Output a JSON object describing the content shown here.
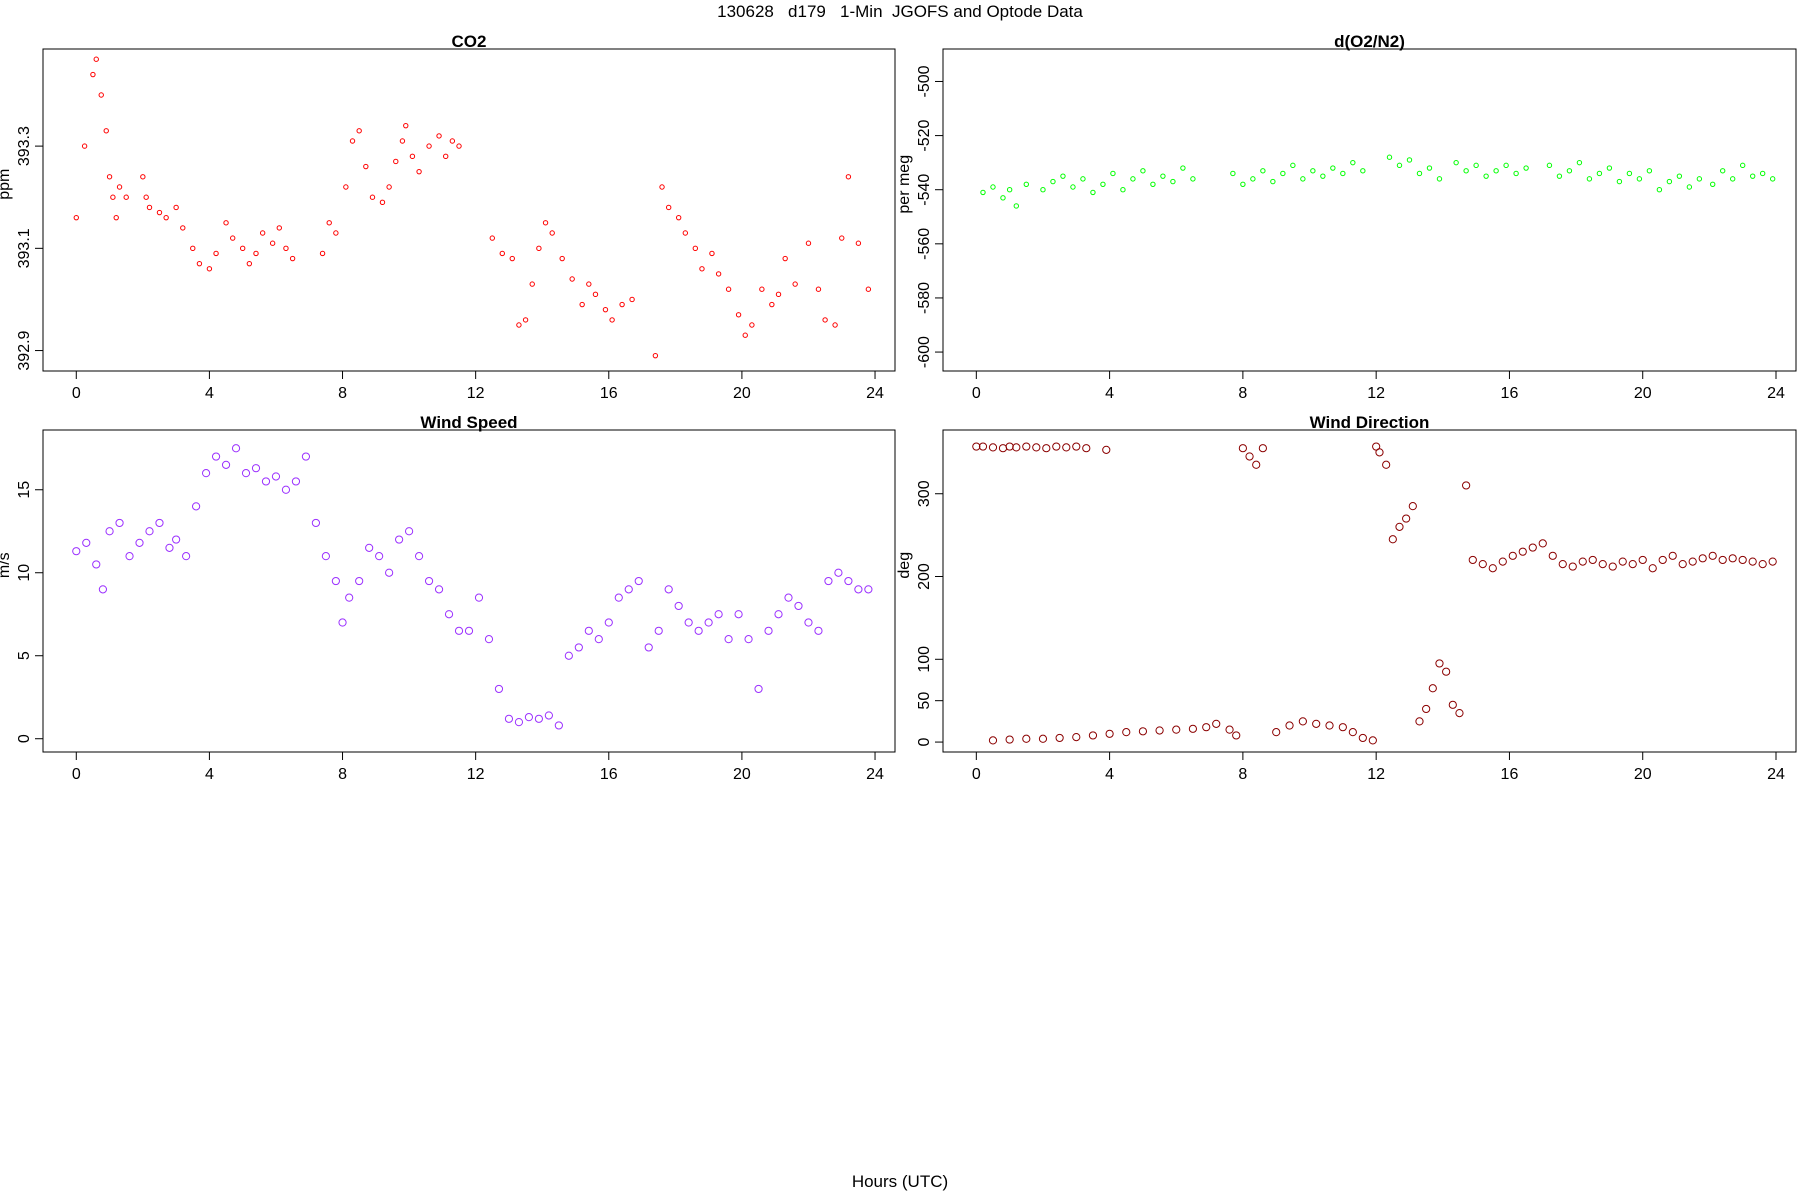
{
  "figure": {
    "title": "130628   d179   1-Min  JGOFS and Optode Data",
    "xlabel": "Hours (UTC)"
  },
  "chart_data": [
    {
      "type": "scatter",
      "title": "CO2",
      "ylabel": "ppm",
      "color": "#ff0000",
      "marker": "small-circle",
      "xlim": [
        -1,
        24.6
      ],
      "ylim": [
        392.86,
        393.49
      ],
      "xticks": [
        0,
        4,
        8,
        12,
        16,
        20,
        24
      ],
      "yticks": [
        392.9,
        393.1,
        393.3
      ],
      "ytick_labels": [
        "392.9",
        "393.1",
        "393.3"
      ],
      "grid": false,
      "series": [
        {
          "x": [
            0.0,
            0.25,
            0.5,
            0.6,
            0.75,
            0.9,
            1.0,
            1.1,
            1.2,
            1.3,
            1.5,
            2.0,
            2.1,
            2.2,
            2.5,
            2.7,
            3.0,
            3.2,
            3.5,
            3.7,
            4.0,
            4.2,
            4.5,
            4.7,
            5.0,
            5.2,
            5.4,
            5.6,
            5.9,
            6.1,
            6.3,
            6.5,
            7.4,
            7.6,
            7.8,
            8.1,
            8.3,
            8.5,
            8.7,
            8.9,
            9.2,
            9.4,
            9.6,
            9.8,
            9.9,
            10.1,
            10.3,
            10.6,
            10.9,
            11.1,
            11.3,
            11.5,
            12.5,
            12.8,
            13.1,
            13.3,
            13.5,
            13.7,
            13.9,
            14.1,
            14.3,
            14.6,
            14.9,
            15.2,
            15.4,
            15.6,
            15.9,
            16.1,
            16.4,
            16.7,
            17.4,
            17.6,
            17.8,
            18.1,
            18.3,
            18.6,
            18.8,
            19.1,
            19.3,
            19.6,
            19.9,
            20.1,
            20.3,
            20.6,
            20.9,
            21.1,
            21.3,
            21.6,
            22.0,
            22.3,
            22.5,
            22.8,
            23.0,
            23.2,
            23.5,
            23.8
          ],
          "y": [
            393.16,
            393.3,
            393.44,
            393.47,
            393.4,
            393.33,
            393.24,
            393.2,
            393.16,
            393.22,
            393.2,
            393.24,
            393.2,
            393.18,
            393.17,
            393.16,
            393.18,
            393.14,
            393.1,
            393.07,
            393.06,
            393.09,
            393.15,
            393.12,
            393.1,
            393.07,
            393.09,
            393.13,
            393.11,
            393.14,
            393.1,
            393.08,
            393.09,
            393.15,
            393.13,
            393.22,
            393.31,
            393.33,
            393.26,
            393.2,
            393.19,
            393.22,
            393.27,
            393.31,
            393.34,
            393.28,
            393.25,
            393.3,
            393.32,
            393.28,
            393.31,
            393.3,
            393.12,
            393.09,
            393.08,
            392.95,
            392.96,
            393.03,
            393.1,
            393.15,
            393.13,
            393.08,
            393.04,
            392.99,
            393.03,
            393.01,
            392.98,
            392.96,
            392.99,
            393.0,
            392.89,
            393.22,
            393.18,
            393.16,
            393.13,
            393.1,
            393.06,
            393.09,
            393.05,
            393.02,
            392.97,
            392.93,
            392.95,
            393.02,
            392.99,
            393.01,
            393.08,
            393.03,
            393.11,
            393.02,
            392.96,
            392.95,
            393.12,
            393.24,
            393.11,
            393.02
          ]
        }
      ]
    },
    {
      "type": "scatter",
      "title": "d(O2/N2)",
      "ylabel": "per meg",
      "color": "#00ff00",
      "marker": "small-circle",
      "xlim": [
        -1,
        24.6
      ],
      "ylim": [
        -607,
        -488
      ],
      "xticks": [
        0,
        4,
        8,
        12,
        16,
        20,
        24
      ],
      "yticks": [
        -600,
        -580,
        -560,
        -540,
        -520,
        -500
      ],
      "ytick_labels": [
        "-600",
        "-580",
        "-560",
        "-540",
        "-520",
        "-500"
      ],
      "grid": false,
      "series": [
        {
          "x": [
            0.2,
            0.5,
            0.8,
            1.0,
            1.2,
            1.5,
            2.0,
            2.3,
            2.6,
            2.9,
            3.2,
            3.5,
            3.8,
            4.1,
            4.4,
            4.7,
            5.0,
            5.3,
            5.6,
            5.9,
            6.2,
            6.5,
            7.7,
            8.0,
            8.3,
            8.6,
            8.9,
            9.2,
            9.5,
            9.8,
            10.1,
            10.4,
            10.7,
            11.0,
            11.3,
            11.6,
            12.4,
            12.7,
            13.0,
            13.3,
            13.6,
            13.9,
            14.4,
            14.7,
            15.0,
            15.3,
            15.6,
            15.9,
            16.2,
            16.5,
            17.2,
            17.5,
            17.8,
            18.1,
            18.4,
            18.7,
            19.0,
            19.3,
            19.6,
            19.9,
            20.2,
            20.5,
            20.8,
            21.1,
            21.4,
            21.7,
            22.1,
            22.4,
            22.7,
            23.0,
            23.3,
            23.6,
            23.9
          ],
          "y": [
            -541,
            -539,
            -543,
            -540,
            -546,
            -538,
            -540,
            -537,
            -535,
            -539,
            -536,
            -541,
            -538,
            -534,
            -540,
            -536,
            -533,
            -538,
            -535,
            -537,
            -532,
            -536,
            -534,
            -538,
            -536,
            -533,
            -537,
            -534,
            -531,
            -536,
            -533,
            -535,
            -532,
            -534,
            -530,
            -533,
            -528,
            -531,
            -529,
            -534,
            -532,
            -536,
            -530,
            -533,
            -531,
            -535,
            -533,
            -531,
            -534,
            -532,
            -531,
            -535,
            -533,
            -530,
            -536,
            -534,
            -532,
            -537,
            -534,
            -536,
            -533,
            -540,
            -537,
            -535,
            -539,
            -536,
            -538,
            -533,
            -536,
            -531,
            -535,
            -534,
            -536
          ]
        }
      ]
    },
    {
      "type": "scatter",
      "title": "Wind Speed",
      "ylabel": "m/s",
      "color": "#9b30ff",
      "marker": "circle",
      "xlim": [
        -1,
        24.6
      ],
      "ylim": [
        -0.8,
        18.6
      ],
      "xticks": [
        0,
        4,
        8,
        12,
        16,
        20,
        24
      ],
      "yticks": [
        0,
        5,
        10,
        15
      ],
      "ytick_labels": [
        "0",
        "5",
        "10",
        "15"
      ],
      "grid": false,
      "series": [
        {
          "x": [
            0.0,
            0.3,
            0.6,
            0.8,
            1.0,
            1.3,
            1.6,
            1.9,
            2.2,
            2.5,
            2.8,
            3.0,
            3.3,
            3.6,
            3.9,
            4.2,
            4.5,
            4.8,
            5.1,
            5.4,
            5.7,
            6.0,
            6.3,
            6.6,
            6.9,
            7.2,
            7.5,
            7.8,
            8.0,
            8.2,
            8.5,
            8.8,
            9.1,
            9.4,
            9.7,
            10.0,
            10.3,
            10.6,
            10.9,
            11.2,
            11.5,
            11.8,
            12.1,
            12.4,
            12.7,
            13.0,
            13.3,
            13.6,
            13.9,
            14.2,
            14.5,
            14.8,
            15.1,
            15.4,
            15.7,
            16.0,
            16.3,
            16.6,
            16.9,
            17.2,
            17.5,
            17.8,
            18.1,
            18.4,
            18.7,
            19.0,
            19.3,
            19.6,
            19.9,
            20.2,
            20.5,
            20.8,
            21.1,
            21.4,
            21.7,
            22.0,
            22.3,
            22.6,
            22.9,
            23.2,
            23.5,
            23.8
          ],
          "y": [
            11.3,
            11.8,
            10.5,
            9.0,
            12.5,
            13.0,
            11.0,
            11.8,
            12.5,
            13.0,
            11.5,
            12.0,
            11.0,
            14.0,
            16.0,
            17.0,
            16.5,
            17.5,
            16.0,
            16.3,
            15.5,
            15.8,
            15.0,
            15.5,
            17.0,
            13.0,
            11.0,
            9.5,
            7.0,
            8.5,
            9.5,
            11.5,
            11.0,
            10.0,
            12.0,
            12.5,
            11.0,
            9.5,
            9.0,
            7.5,
            6.5,
            6.5,
            8.5,
            6.0,
            3.0,
            1.2,
            1.0,
            1.3,
            1.2,
            1.4,
            0.8,
            5.0,
            5.5,
            6.5,
            6.0,
            7.0,
            8.5,
            9.0,
            9.5,
            5.5,
            6.5,
            9.0,
            8.0,
            7.0,
            6.5,
            7.0,
            7.5,
            6.0,
            7.5,
            6.0,
            3.0,
            6.5,
            7.5,
            8.5,
            8.0,
            7.0,
            6.5,
            9.5,
            10.0,
            9.5,
            9.0,
            9.0
          ]
        }
      ]
    },
    {
      "type": "scatter",
      "title": "Wind Direction",
      "ylabel": "deg",
      "color": "#8b0000",
      "marker": "circle",
      "xlim": [
        -1,
        24.6
      ],
      "ylim": [
        -12,
        377
      ],
      "xticks": [
        0,
        4,
        8,
        12,
        16,
        20,
        24
      ],
      "yticks": [
        0,
        50,
        100,
        200,
        300
      ],
      "ytick_labels": [
        "0",
        "50",
        "100",
        "200",
        "300"
      ],
      "grid": false,
      "series": [
        {
          "x": [
            0.0,
            0.2,
            0.5,
            0.8,
            1.0,
            1.2,
            1.5,
            1.8,
            2.1,
            2.4,
            2.7,
            3.0,
            3.3,
            3.9,
            0.5,
            1.0,
            1.5,
            2.0,
            2.5,
            3.0,
            3.5,
            4.0,
            4.5,
            5.0,
            5.5,
            6.0,
            6.5,
            6.9,
            7.2,
            7.6,
            7.8,
            8.0,
            8.2,
            8.4,
            8.6,
            9.0,
            9.4,
            9.8,
            10.2,
            10.6,
            11.0,
            11.3,
            11.6,
            11.9,
            12.0,
            12.1,
            12.3,
            12.5,
            12.7,
            12.9,
            13.1,
            13.3,
            13.5,
            13.7,
            13.9,
            14.1,
            14.3,
            14.5,
            14.7,
            14.9,
            15.2,
            15.5,
            15.8,
            16.1,
            16.4,
            16.7,
            17.0,
            17.3,
            17.6,
            17.9,
            18.2,
            18.5,
            18.8,
            19.1,
            19.4,
            19.7,
            20.0,
            20.3,
            20.6,
            20.9,
            21.2,
            21.5,
            21.8,
            22.1,
            22.4,
            22.7,
            23.0,
            23.3,
            23.6,
            23.9
          ],
          "y": [
            357,
            357,
            356,
            355,
            357,
            356,
            357,
            356,
            355,
            357,
            356,
            357,
            355,
            353,
            2,
            3,
            4,
            4,
            5,
            6,
            8,
            10,
            12,
            13,
            14,
            15,
            16,
            18,
            22,
            15,
            8,
            355,
            345,
            335,
            355,
            12,
            20,
            25,
            22,
            20,
            18,
            12,
            5,
            2,
            357,
            350,
            335,
            245,
            260,
            270,
            285,
            25,
            40,
            65,
            95,
            85,
            45,
            35,
            310,
            220,
            215,
            210,
            218,
            225,
            230,
            235,
            240,
            225,
            215,
            212,
            218,
            220,
            215,
            212,
            218,
            215,
            220,
            210,
            220,
            225,
            215,
            218,
            222,
            225,
            220,
            222,
            220,
            218,
            215,
            218
          ]
        }
      ]
    }
  ]
}
